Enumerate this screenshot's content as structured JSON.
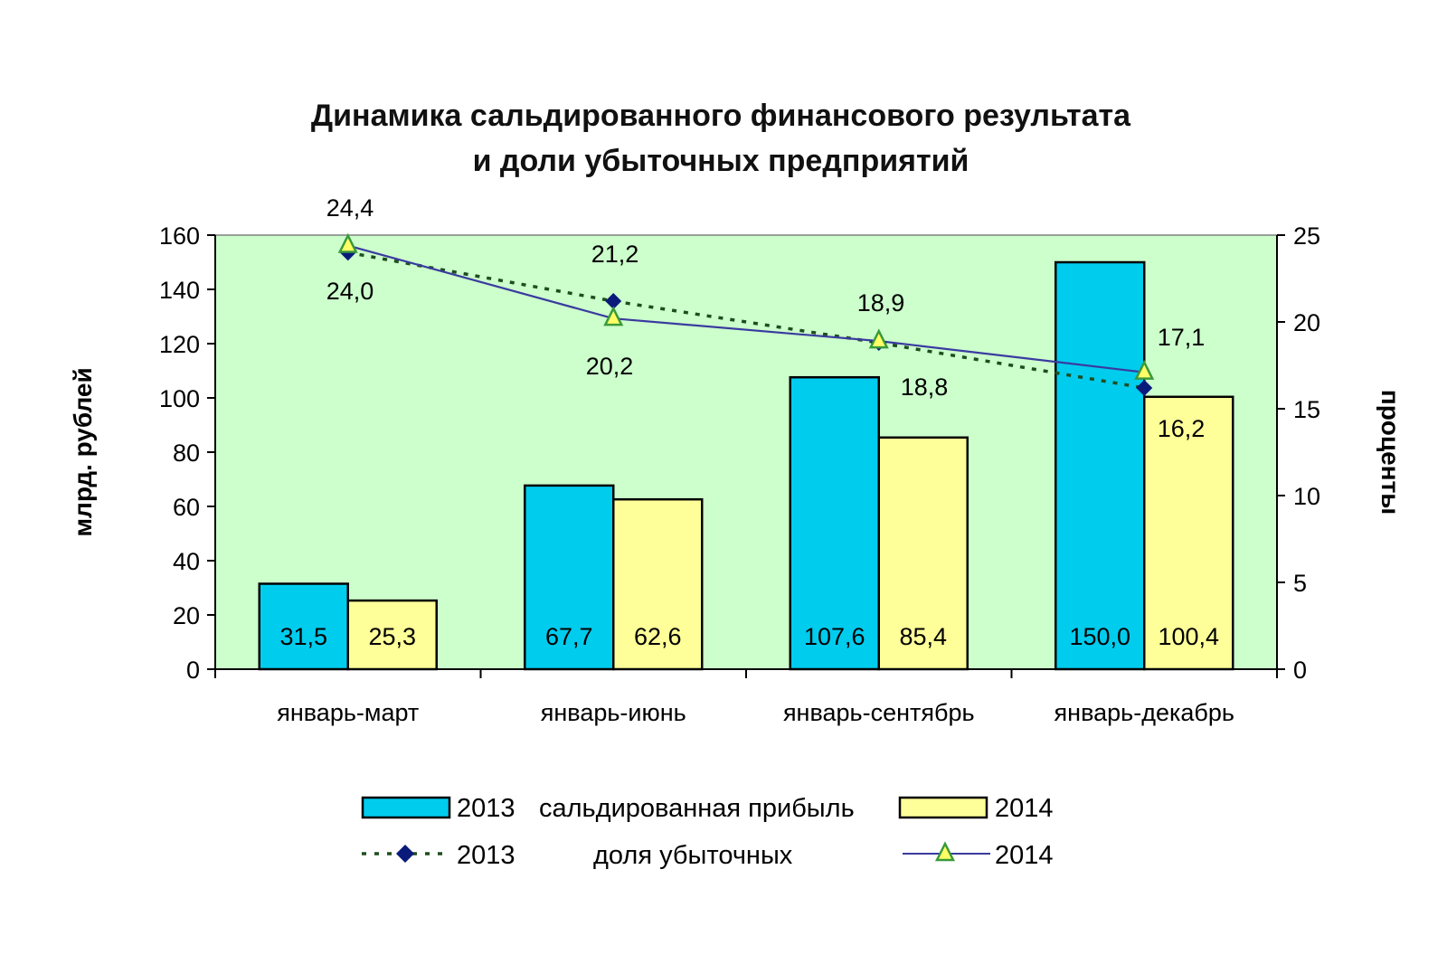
{
  "chart_data": {
    "type": "bar",
    "title_lines": [
      "Динамика сальдированного финансового результата",
      "и доли убыточных предприятий"
    ],
    "categories": [
      "январь-март",
      "январь-июнь",
      "январь-сентябрь",
      "январь-декабрь"
    ],
    "y_left": {
      "label": "млрд. рублей",
      "range": [
        0,
        160
      ],
      "ticks": [
        "0",
        "20",
        "40",
        "60",
        "80",
        "100",
        "120",
        "140",
        "160"
      ]
    },
    "y_right": {
      "label": "проценты",
      "range": [
        0,
        25
      ],
      "ticks": [
        "0",
        "5",
        "10",
        "15",
        "20",
        "25"
      ]
    },
    "bar_series": [
      {
        "name": "2013",
        "color": "#00ccee",
        "values": [
          31.5,
          67.7,
          107.6,
          150.0
        ],
        "labels": [
          "31,5",
          "67,7",
          "107,6",
          "150,0"
        ]
      },
      {
        "name": "2014",
        "color": "#ffff99",
        "values": [
          25.3,
          62.6,
          85.4,
          100.4
        ],
        "labels": [
          "25,3",
          "62,6",
          "85,4",
          "100,4"
        ]
      }
    ],
    "line_series": [
      {
        "name": "2013",
        "axis": "right",
        "style": "dotted",
        "line_color": "#1f4d1f",
        "marker": "diamond",
        "marker_color": "#0a1a7a",
        "values": [
          24.0,
          21.2,
          18.8,
          16.2
        ],
        "labels": [
          "24,0",
          "21,2",
          "18,8",
          "16,2"
        ]
      },
      {
        "name": "2014",
        "axis": "right",
        "style": "solid",
        "line_color": "#3a3aa0",
        "marker": "triangle",
        "marker_color": "#ffff66",
        "marker_edge": "#3a9a3a",
        "values": [
          24.4,
          20.2,
          18.9,
          17.1
        ],
        "labels": [
          "24,4",
          "20,2",
          "18,9",
          "17,1"
        ]
      }
    ],
    "plot_background": "#ccffcc",
    "legend": {
      "position": "bottom",
      "bar_group_label": "сальдированная прибыль",
      "line_group_label": "доля убыточных"
    }
  }
}
